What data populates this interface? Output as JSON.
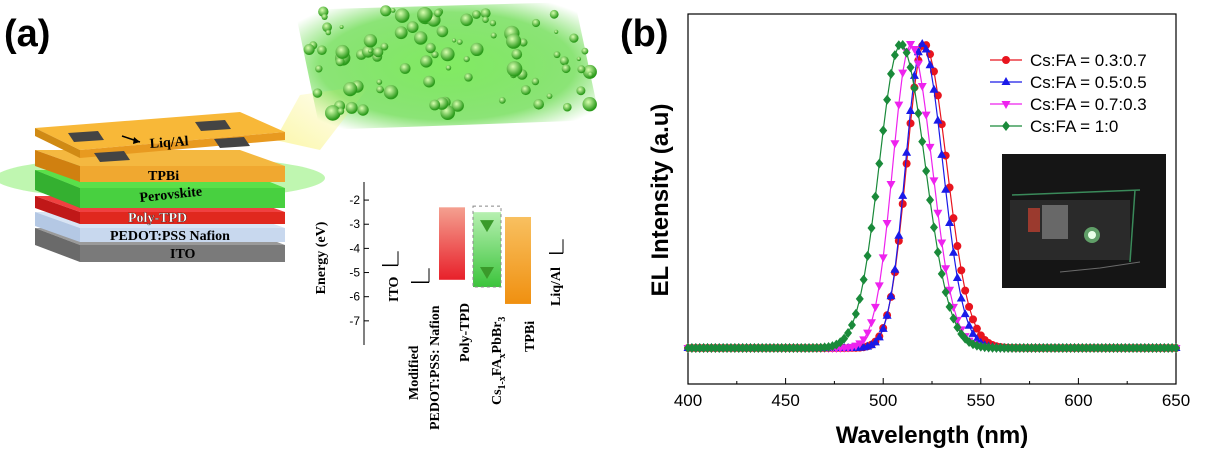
{
  "figure": {
    "panel_a": "(a)",
    "panel_b": "(b)"
  },
  "panel_a": {
    "layers": [
      {
        "label": "Liq/Al",
        "color": "#f0a830"
      },
      {
        "label": "TPBi",
        "color": "#f0a830"
      },
      {
        "label": "Perovskite",
        "color": "#3ccc3c"
      },
      {
        "label": "Poly-TPD",
        "color": "#e0281e"
      },
      {
        "label": "PEDOT:PSS Nafion",
        "color": "#c8d8ee"
      },
      {
        "label": "ITO",
        "color": "#8a8a8a"
      }
    ],
    "energy_diagram": {
      "ylabel": "Energy (eV)",
      "yticks": [
        "-2",
        "-3",
        "-4",
        "-5",
        "-6",
        "-7"
      ],
      "ylim": [
        -8,
        -1.5
      ],
      "materials": [
        {
          "label": "ITO",
          "kind": "line",
          "level": -4.7
        },
        {
          "label_line1": "Modified",
          "label_line2": "PEDOT:PSS: Nafion",
          "kind": "line",
          "level": -5.4
        },
        {
          "label": "Poly-TPD",
          "kind": "bar",
          "top": -2.3,
          "bottom": -5.3,
          "color": "#e04040"
        },
        {
          "label_main": "Cs",
          "label_sub1": "1-x",
          "label_mid": "FA",
          "label_sub2": "x",
          "label_tail": "PbBr",
          "label_sub3": "3",
          "kind": "bar",
          "top": -2.5,
          "bottom": -5.6,
          "color": "#5cd05c"
        },
        {
          "label": "TPBi",
          "kind": "bar",
          "top": -2.7,
          "bottom": -6.3,
          "color": "#f0a020"
        },
        {
          "label": "Liq/Al",
          "kind": "line",
          "level": -4.2
        }
      ]
    }
  },
  "chart_data": {
    "type": "line",
    "xlabel": "Wavelength (nm)",
    "ylabel": "EL Intensity (a.u)",
    "xlim": [
      400,
      650
    ],
    "xticks": [
      400,
      450,
      500,
      550,
      600,
      650
    ],
    "ylim": [
      0,
      1.05
    ],
    "series": [
      {
        "name": "Cs:FA = 0.3:0.7",
        "color": "#e8141e",
        "marker": "circle",
        "peak": 521,
        "width_left": 9.0,
        "width_right": 11.5
      },
      {
        "name": "Cs:FA = 0.5:0.5",
        "color": "#1a1ae8",
        "marker": "triangle-up",
        "peak": 520,
        "width_left": 8.5,
        "width_right": 10.5
      },
      {
        "name": "Cs:FA = 0.7:0.3",
        "color": "#ee22ee",
        "marker": "triangle-down",
        "peak": 514,
        "width_left": 9.0,
        "width_right": 11.0
      },
      {
        "name": "Cs:FA = 1:0",
        "color": "#1a8a3a",
        "marker": "diamond",
        "peak": 509,
        "width_left": 11.0,
        "width_right": 12.5
      }
    ],
    "x_sampling": {
      "start": 400,
      "end": 650,
      "step": 2
    },
    "inset": "photo of glowing device"
  }
}
